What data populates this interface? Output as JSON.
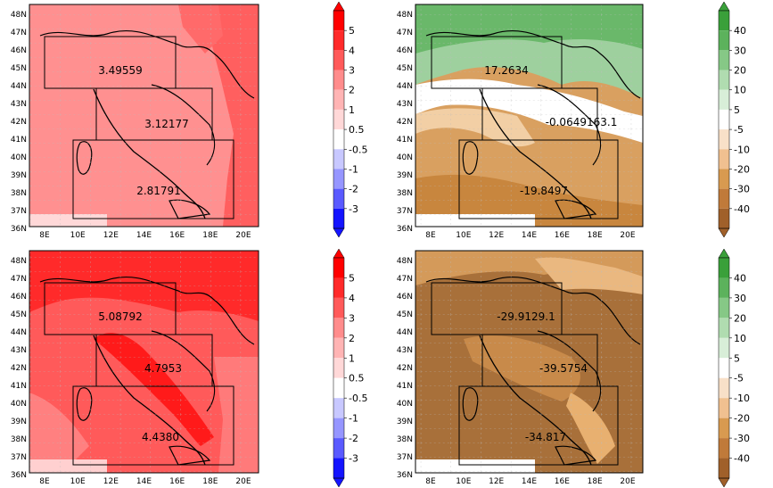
{
  "lat_labels": [
    "48N",
    "47N",
    "46N",
    "45N",
    "44N",
    "43N",
    "42N",
    "41N",
    "40N",
    "39N",
    "38N",
    "37N",
    "36N"
  ],
  "lon_labels": [
    "8E",
    "10E",
    "12E",
    "14E",
    "16E",
    "18E",
    "20E"
  ],
  "colorbars": {
    "temperature": {
      "ticks": [
        "5",
        "4",
        "3",
        "2",
        "1",
        "0.5",
        "-0.5",
        "-1",
        "-2",
        "-3"
      ],
      "colors": [
        "#ff0000",
        "#ff2a2a",
        "#ff5a5a",
        "#ff8c8c",
        "#ffb4b4",
        "#ffd8d8",
        "#ffffff",
        "#c8c8ff",
        "#9696ff",
        "#5a5aff",
        "#1414ff"
      ]
    },
    "precipitation": {
      "ticks": [
        "40",
        "30",
        "20",
        "10",
        "5",
        "-5",
        "-10",
        "-20",
        "-30",
        "-40"
      ],
      "colors": [
        "#3aa03a",
        "#5cb25c",
        "#86c886",
        "#b0dcb0",
        "#d8eed8",
        "#ffffff",
        "#f8e0c8",
        "#f0c090",
        "#d89a50",
        "#c07a3a",
        "#a0602a"
      ]
    }
  },
  "panels": [
    {
      "id": "temp-top",
      "box_values": [
        "3.49559",
        "3.12177",
        "2.81791"
      ],
      "base_color": "#ff8f8f"
    },
    {
      "id": "precip-top",
      "box_values": [
        "17.2634",
        "-0.0649163.1",
        "-19.8497"
      ],
      "base_color": "#d9a060"
    },
    {
      "id": "temp-bottom",
      "box_values": [
        "5.08792",
        "4.7953",
        "4.4380"
      ],
      "base_color": "#ff5050"
    },
    {
      "id": "precip-bottom",
      "box_values": [
        "-29.9129.1",
        "-39.5754",
        "-34.817"
      ],
      "base_color": "#a8703a"
    }
  ]
}
